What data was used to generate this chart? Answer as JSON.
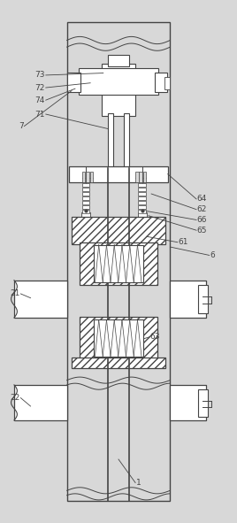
{
  "bg_color": "#d8d8d8",
  "line_color": "#444444",
  "white": "#ffffff",
  "figsize": [
    2.68,
    5.91
  ],
  "dpi": 100
}
